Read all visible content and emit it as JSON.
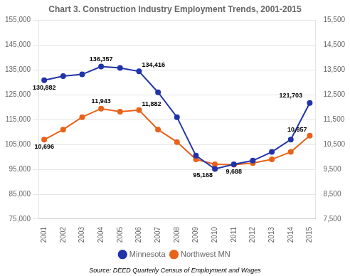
{
  "chart_data": {
    "type": "line",
    "title": "Chart 3. Construction Industry Employment Trends, 2001-2015",
    "source": "Source: DEED Quarterly Census of Employment and Wages",
    "x": [
      2001,
      2002,
      2003,
      2004,
      2005,
      2006,
      2007,
      2008,
      2009,
      2010,
      2011,
      2012,
      2013,
      2014,
      2015
    ],
    "xlim": [
      2000.7,
      2015.3
    ],
    "xticks": [
      2001,
      2002,
      2003,
      2004,
      2005,
      2006,
      2007,
      2008,
      2009,
      2010,
      2011,
      2012,
      2013,
      2014,
      2015
    ],
    "series": [
      {
        "name": "Minnesota",
        "color": "#2233AA",
        "marker": "circle",
        "axis": "y",
        "values": [
          130882,
          132500,
          133200,
          136357,
          135800,
          134416,
          126000,
          116000,
          100500,
          95168,
          97000,
          98500,
          102000,
          107000,
          121703
        ]
      },
      {
        "name": "Northwest MN",
        "color": "#E8621A",
        "marker": "circle",
        "axis": "y2",
        "values": [
          10696,
          11100,
          11600,
          11943,
          11820,
          11882,
          11100,
          10600,
          9900,
          9700,
          9688,
          9750,
          9900,
          10200,
          10857
        ]
      }
    ],
    "ylim": [
      75000,
      155000
    ],
    "yticks": [
      {
        "value": 75000,
        "label": "75,000"
      },
      {
        "value": 85000,
        "label": "85,000"
      },
      {
        "value": 95000,
        "label": "95,000"
      },
      {
        "value": 105000,
        "label": "105,000"
      },
      {
        "value": 115000,
        "label": "115,000"
      },
      {
        "value": 125000,
        "label": "125,000"
      },
      {
        "value": 135000,
        "label": "135,000"
      },
      {
        "value": 145000,
        "label": "145,000"
      },
      {
        "value": 155000,
        "label": "155,000"
      }
    ],
    "y2lim": [
      7500,
      15500
    ],
    "y2ticks": [
      {
        "value": 7500,
        "label": "7,500"
      },
      {
        "value": 8500,
        "label": "8,500"
      },
      {
        "value": 9500,
        "label": "9,500"
      },
      {
        "value": 10500,
        "label": "10,500"
      },
      {
        "value": 11500,
        "label": "11,500"
      },
      {
        "value": 12500,
        "label": "12,500"
      },
      {
        "value": 13500,
        "label": "13,500"
      },
      {
        "value": 14500,
        "label": "14,500"
      },
      {
        "value": 15500,
        "label": "15,500"
      }
    ],
    "annotations": [
      {
        "series": "Minnesota",
        "x": 2001,
        "y": 130882,
        "text": "130,882"
      },
      {
        "series": "Minnesota",
        "x": 2004,
        "y": 136357,
        "text": "136,357"
      },
      {
        "series": "Minnesota",
        "x": 2006,
        "y": 134416,
        "text": "134,416"
      },
      {
        "series": "Minnesota",
        "x": 2010,
        "y": 95168,
        "text": "95,168"
      },
      {
        "series": "Minnesota",
        "x": 2014,
        "y": 121703,
        "text": "121,703"
      },
      {
        "series": "Northwest MN",
        "x": 2001,
        "y": 10696,
        "text": "10,696"
      },
      {
        "series": "Northwest MN",
        "x": 2004,
        "y": 11943,
        "text": "11,943"
      },
      {
        "series": "Northwest MN",
        "x": 2006,
        "y": 11882,
        "text": "11,882"
      },
      {
        "series": "Northwest MN",
        "x": 2011,
        "y": 9688,
        "text": "9,688"
      },
      {
        "series": "Northwest MN",
        "x": 2015,
        "y": 10857,
        "text": "10,857"
      }
    ],
    "grid": "y",
    "legend": "bottom"
  }
}
